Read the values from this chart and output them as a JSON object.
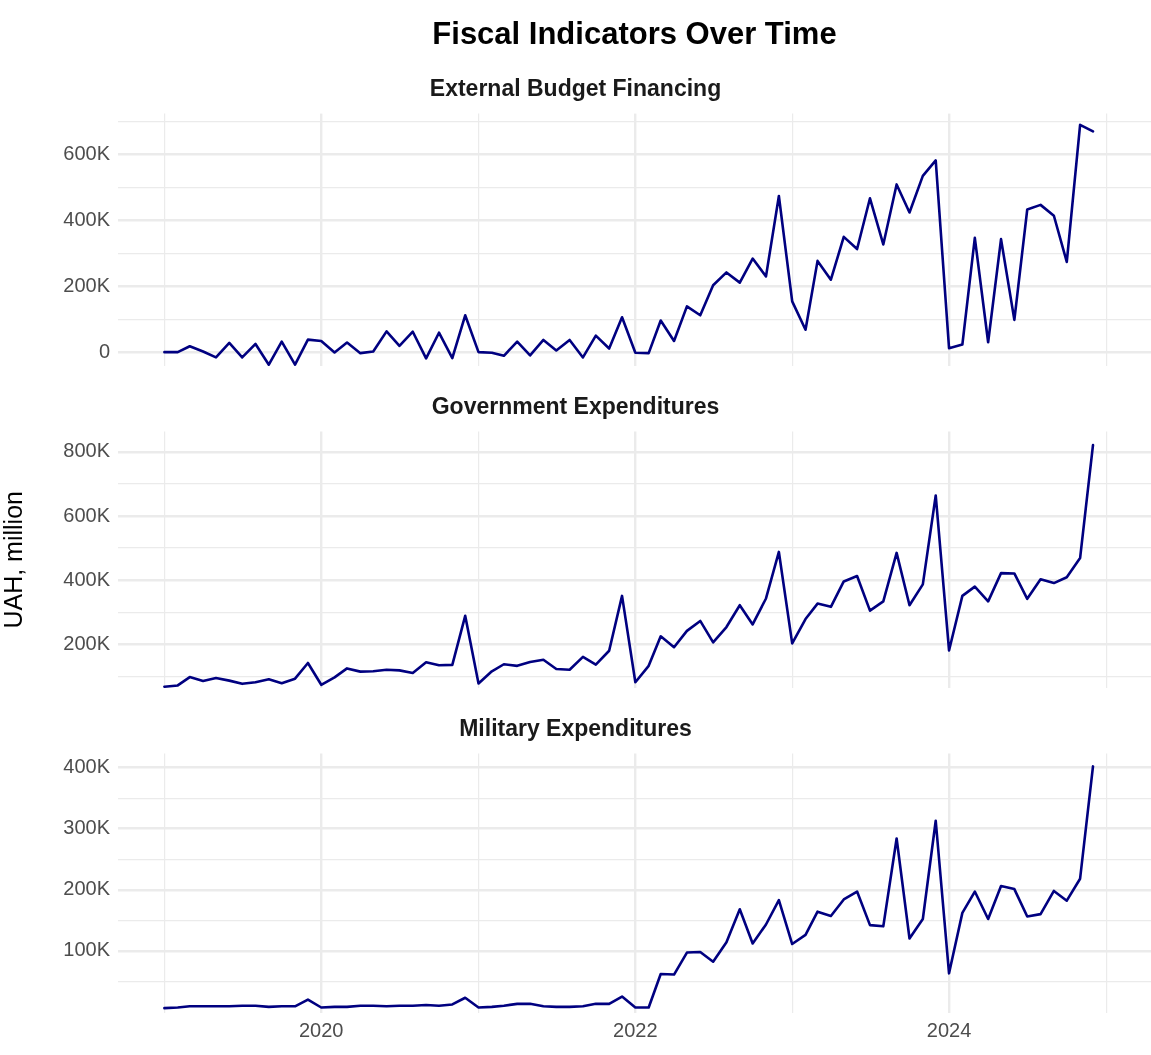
{
  "chart_data": [
    {
      "type": "line",
      "title": "Fiscal Indicators Over Time",
      "subtitle": "External Budget Financing",
      "tick_labels": "y",
      "grid": true,
      "marker": "none",
      "line_style": "solid",
      "x": [
        "2019-01",
        "2019-02",
        "2019-03",
        "2019-04",
        "2019-05",
        "2019-06",
        "2019-07",
        "2019-08",
        "2019-09",
        "2019-10",
        "2019-11",
        "2019-12",
        "2020-01",
        "2020-02",
        "2020-03",
        "2020-04",
        "2020-05",
        "2020-06",
        "2020-07",
        "2020-08",
        "2020-09",
        "2020-10",
        "2020-11",
        "2020-12",
        "2021-01",
        "2021-02",
        "2021-03",
        "2021-04",
        "2021-05",
        "2021-06",
        "2021-07",
        "2021-08",
        "2021-09",
        "2021-10",
        "2021-11",
        "2021-12",
        "2022-01",
        "2022-02",
        "2022-03",
        "2022-04",
        "2022-05",
        "2022-06",
        "2022-07",
        "2022-08",
        "2022-09",
        "2022-10",
        "2022-11",
        "2022-12",
        "2023-01",
        "2023-02",
        "2023-03",
        "2023-04",
        "2023-05",
        "2023-06",
        "2023-07",
        "2023-08",
        "2023-09",
        "2023-10",
        "2023-11",
        "2023-12",
        "2024-01",
        "2024-02",
        "2024-03",
        "2024-04",
        "2024-05",
        "2024-06",
        "2024-07",
        "2024-08",
        "2024-09",
        "2024-10",
        "2024-11",
        "2024-12"
      ],
      "series": [
        {
          "color": "#000080",
          "values": [
            0,
            0,
            18000,
            2000,
            -16000,
            28000,
            -16000,
            25000,
            -38000,
            32000,
            -38000,
            38000,
            34000,
            -1000,
            29000,
            -3000,
            2000,
            63000,
            19000,
            62000,
            -19000,
            59000,
            -18000,
            112000,
            0,
            -2000,
            -11000,
            32000,
            -10000,
            37000,
            5000,
            37000,
            -16000,
            50000,
            11000,
            106000,
            -2000,
            -3000,
            96000,
            34000,
            139000,
            112000,
            203000,
            242000,
            211000,
            284000,
            230000,
            474000,
            154000,
            68000,
            277000,
            220000,
            350000,
            313000,
            467000,
            327000,
            509000,
            424000,
            535000,
            582000,
            12000,
            23000,
            347000,
            30000,
            343000,
            98000,
            433000,
            447000,
            414000,
            274000,
            690000,
            670000
          ]
        }
      ],
      "xlim": [
        "2018-09-15",
        "2025-04-15"
      ],
      "xticks": [
        {
          "value": "2019",
          "label": null
        },
        "2020",
        {
          "value": "2021",
          "label": null
        },
        "2022",
        {
          "value": "2023",
          "label": null
        },
        "2024",
        {
          "value": "2025",
          "label": null
        }
      ],
      "ylim": [
        -42000,
        724000
      ],
      "yticks": [
        0,
        {
          "value": 100000,
          "label": null
        },
        {
          "value": 200000,
          "label": "200K"
        },
        {
          "value": 300000,
          "label": null
        },
        {
          "value": 400000,
          "label": "400K"
        },
        {
          "value": 500000,
          "label": null
        },
        {
          "value": 600000,
          "label": "600K"
        },
        {
          "value": 700000,
          "label": null
        }
      ]
    },
    {
      "type": "line",
      "subtitle": "Government Expenditures",
      "ylabel": "UAH, million",
      "tick_labels": "y",
      "grid": true,
      "marker": "none",
      "line_style": "solid",
      "x": [
        "2019-01",
        "2019-02",
        "2019-03",
        "2019-04",
        "2019-05",
        "2019-06",
        "2019-07",
        "2019-08",
        "2019-09",
        "2019-10",
        "2019-11",
        "2019-12",
        "2020-01",
        "2020-02",
        "2020-03",
        "2020-04",
        "2020-05",
        "2020-06",
        "2020-07",
        "2020-08",
        "2020-09",
        "2020-10",
        "2020-11",
        "2020-12",
        "2021-01",
        "2021-02",
        "2021-03",
        "2021-04",
        "2021-05",
        "2021-06",
        "2021-07",
        "2021-08",
        "2021-09",
        "2021-10",
        "2021-11",
        "2021-12",
        "2022-01",
        "2022-02",
        "2022-03",
        "2022-04",
        "2022-05",
        "2022-06",
        "2022-07",
        "2022-08",
        "2022-09",
        "2022-10",
        "2022-11",
        "2022-12",
        "2023-01",
        "2023-02",
        "2023-03",
        "2023-04",
        "2023-05",
        "2023-06",
        "2023-07",
        "2023-08",
        "2023-09",
        "2023-10",
        "2023-11",
        "2023-12",
        "2024-01",
        "2024-02",
        "2024-03",
        "2024-04",
        "2024-05",
        "2024-06",
        "2024-07",
        "2024-08",
        "2024-09",
        "2024-10",
        "2024-11",
        "2024-12"
      ],
      "series": [
        {
          "color": "#000080",
          "values": [
            68000,
            72000,
            98000,
            86000,
            95000,
            87000,
            77000,
            82000,
            91000,
            79000,
            93000,
            142000,
            74000,
            97000,
            125000,
            115000,
            116000,
            121000,
            119000,
            111000,
            144000,
            135000,
            136000,
            289000,
            78000,
            116000,
            138000,
            133000,
            145000,
            152000,
            123000,
            121000,
            161000,
            137000,
            180000,
            351000,
            82000,
            133000,
            225000,
            191000,
            242000,
            273000,
            206000,
            254000,
            322000,
            262000,
            343000,
            488000,
            203000,
            279000,
            327000,
            317000,
            396000,
            413000,
            305000,
            334000,
            485000,
            322000,
            387000,
            664000,
            181000,
            351000,
            380000,
            334000,
            422000,
            421000,
            342000,
            403000,
            391000,
            409000,
            469000,
            821000
          ]
        }
      ],
      "xlim": [
        "2018-09-15",
        "2025-04-15"
      ],
      "xticks": [
        {
          "value": "2019",
          "label": null
        },
        "2020",
        {
          "value": "2021",
          "label": null
        },
        "2022",
        {
          "value": "2023",
          "label": null
        },
        "2024",
        {
          "value": "2025",
          "label": null
        }
      ],
      "ylim": [
        64000,
        863000
      ],
      "yticks": [
        {
          "value": 100000,
          "label": null
        },
        {
          "value": 200000,
          "label": "200K"
        },
        {
          "value": 300000,
          "label": null
        },
        {
          "value": 400000,
          "label": "400K"
        },
        {
          "value": 500000,
          "label": null
        },
        {
          "value": 600000,
          "label": "600K"
        },
        {
          "value": 700000,
          "label": null
        },
        {
          "value": 800000,
          "label": "800K"
        }
      ]
    },
    {
      "type": "line",
      "subtitle": "Military Expenditures",
      "grid": true,
      "marker": "none",
      "line_style": "solid",
      "x": [
        "2019-01",
        "2019-02",
        "2019-03",
        "2019-04",
        "2019-05",
        "2019-06",
        "2019-07",
        "2019-08",
        "2019-09",
        "2019-10",
        "2019-11",
        "2019-12",
        "2020-01",
        "2020-02",
        "2020-03",
        "2020-04",
        "2020-05",
        "2020-06",
        "2020-07",
        "2020-08",
        "2020-09",
        "2020-10",
        "2020-11",
        "2020-12",
        "2021-01",
        "2021-02",
        "2021-03",
        "2021-04",
        "2021-05",
        "2021-06",
        "2021-07",
        "2021-08",
        "2021-09",
        "2021-10",
        "2021-11",
        "2021-12",
        "2022-01",
        "2022-02",
        "2022-03",
        "2022-04",
        "2022-05",
        "2022-06",
        "2022-07",
        "2022-08",
        "2022-09",
        "2022-10",
        "2022-11",
        "2022-12",
        "2023-01",
        "2023-02",
        "2023-03",
        "2023-04",
        "2023-05",
        "2023-06",
        "2023-07",
        "2023-08",
        "2023-09",
        "2023-10",
        "2023-11",
        "2023-12",
        "2024-01",
        "2024-02",
        "2024-03",
        "2024-04",
        "2024-05",
        "2024-06",
        "2024-07",
        "2024-08",
        "2024-09",
        "2024-10",
        "2024-11",
        "2024-12"
      ],
      "series": [
        {
          "color": "#000080",
          "values": [
            6000,
            7000,
            9000,
            9000,
            9000,
            9000,
            10000,
            10000,
            8000,
            9000,
            9000,
            20000,
            7000,
            8000,
            8000,
            10000,
            10000,
            9000,
            10000,
            10000,
            11000,
            10000,
            12000,
            23000,
            7000,
            8000,
            10000,
            13000,
            13000,
            9000,
            8000,
            8000,
            9000,
            13000,
            13000,
            25000,
            7000,
            7000,
            62000,
            61000,
            97000,
            98000,
            82000,
            114000,
            168000,
            112000,
            143000,
            183000,
            111000,
            126000,
            164000,
            157000,
            184000,
            197000,
            142000,
            140000,
            284000,
            120000,
            152000,
            313000,
            63000,
            162000,
            197000,
            152000,
            206000,
            201000,
            156000,
            160000,
            198000,
            182000,
            218000,
            402000
          ]
        }
      ],
      "xlim": [
        "2018-09-15",
        "2025-04-15"
      ],
      "xticks": [
        {
          "value": "2019",
          "label": null
        },
        "2020",
        {
          "value": "2021",
          "label": null
        },
        "2022",
        {
          "value": "2023",
          "label": null
        },
        "2024",
        {
          "value": "2025",
          "label": null
        }
      ],
      "ylim": [
        -2000,
        423000
      ],
      "yticks": [
        {
          "value": 50000,
          "label": null
        },
        {
          "value": 100000,
          "label": "100K"
        },
        {
          "value": 150000,
          "label": null
        },
        {
          "value": 200000,
          "label": "200K"
        },
        {
          "value": 250000,
          "label": null
        },
        {
          "value": 300000,
          "label": "300K"
        },
        {
          "value": 350000,
          "label": null
        },
        {
          "value": 400000,
          "label": "400K"
        }
      ]
    }
  ]
}
